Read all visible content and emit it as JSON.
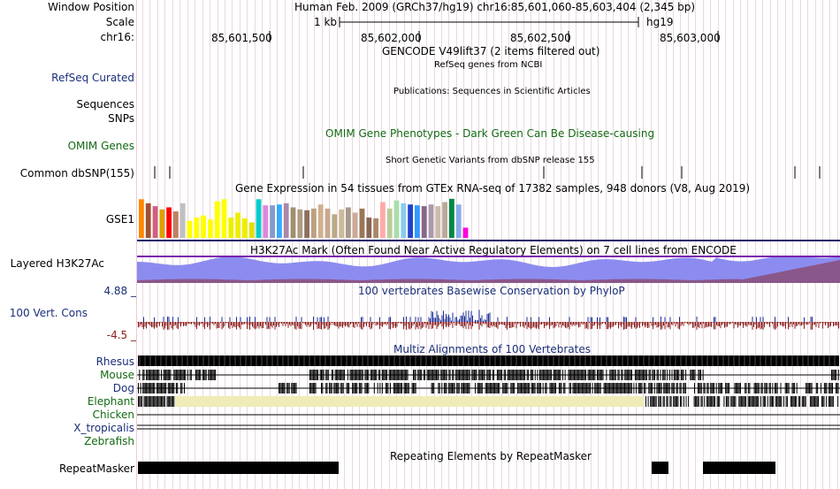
{
  "header": {
    "window_position_label": "Window Position",
    "window_position_value": "Human Feb. 2009 (GRCh37/hg19)   chr16:85,601,060-85,603,404 (2,345 bp)",
    "scale_label": "Scale",
    "scale_value": "1 kb",
    "scale_assembly": "hg19",
    "chrom_label": "chr16:",
    "ticks": [
      "85,601,500",
      "85,602,000",
      "85,602,500",
      "85,603,000"
    ]
  },
  "tracks": {
    "gencode_title": "GENCODE V49lift37 (2 items filtered out)",
    "refseq_label": "RefSeq Curated",
    "refseq_title": "RefSeq genes from NCBI",
    "sequences_label": "Sequences",
    "publications_title": "Publications: Sequences in Scientific Articles",
    "snps_label": "SNPs",
    "omim_label": "OMIM Genes",
    "omim_title": "OMIM Gene Phenotypes - Dark Green Can Be Disease-causing",
    "dbsnp_title": "Short Genetic Variants from dbSNP release 155",
    "dbsnp_label": "Common dbSNP(155)",
    "gtex_title": "Gene Expression in 54 tissues from GTEx RNA-seq of 17382 samples, 948 donors (V8, Aug 2019)",
    "gtex_label": "GSE1",
    "h3k27ac_title": "H3K27Ac Mark (Often Found Near Active Regulatory Elements) on 7 cell lines from ENCODE",
    "h3k27ac_label": "Layered H3K27Ac",
    "phylop_title": "100 vertebrates Basewise Conservation by PhyloP",
    "phylop_label": "100 Vert. Cons",
    "phylop_max": "4.88 _",
    "phylop_min": "-4.5 _",
    "multiz_title": "Multiz Alignments of 100 Vertebrates",
    "species": [
      "Rhesus",
      "Mouse",
      "Dog",
      "Elephant",
      "Chicken",
      "X_tropicalis",
      "Zebrafish"
    ],
    "repeat_title": "Repeating Elements by RepeatMasker",
    "repeat_label": "RepeatMasker"
  },
  "colors": {
    "label_blue": "#1a2f7a",
    "label_green": "#126a12",
    "h3k27ac_fill": "#8c8cf0",
    "phylop_pos": "#1a2f9a",
    "phylop_neg": "#8b1a1a",
    "elephant_gap": "#f0ecb8",
    "grid": "#e8d9e0"
  },
  "gtex_values": [
    0.95,
    0.85,
    0.78,
    0.7,
    0.75,
    0.65,
    0.85,
    0.42,
    0.5,
    0.55,
    0.45,
    0.9,
    0.95,
    0.5,
    0.62,
    0.48,
    0.38,
    0.95,
    0.8,
    0.8,
    0.82,
    0.85,
    0.75,
    0.7,
    0.68,
    0.72,
    0.82,
    0.72,
    0.58,
    0.7,
    0.75,
    0.62,
    0.72,
    0.5,
    0.48,
    0.88,
    0.72,
    0.92,
    0.85,
    0.82,
    0.8,
    0.78,
    0.82,
    0.78,
    0.88,
    0.96,
    0.82,
    0.25
  ],
  "gtex_colors": [
    "#ff8800",
    "#a05030",
    "#d06080",
    "#e0a000",
    "#ff0000",
    "#c08060",
    "#c0c0c0",
    "#ffff00",
    "#ffff00",
    "#ffff00",
    "#ffff00",
    "#ffff00",
    "#ffff00",
    "#eeee00",
    "#eeee00",
    "#eeee00",
    "#e0e000",
    "#00cccc",
    "#dd88dd",
    "#8899cc",
    "#33aaff",
    "#aa88aa",
    "#a09070",
    "#b09a80",
    "#8a7060",
    "#c0a080",
    "#d0b090",
    "#c8a890",
    "#bbaa88",
    "#ccbb99",
    "#aa9988",
    "#ccaa99",
    "#997755",
    "#886655",
    "#aa8866",
    "#ffaaaa",
    "#bbcc99",
    "#aaddaa",
    "#88ccee",
    "#2244cc",
    "#3399ff",
    "#886688",
    "#aa99aa",
    "#ccbbaa",
    "#bbaa99",
    "#008844",
    "#88aaee",
    "#ff00dd"
  ]
}
